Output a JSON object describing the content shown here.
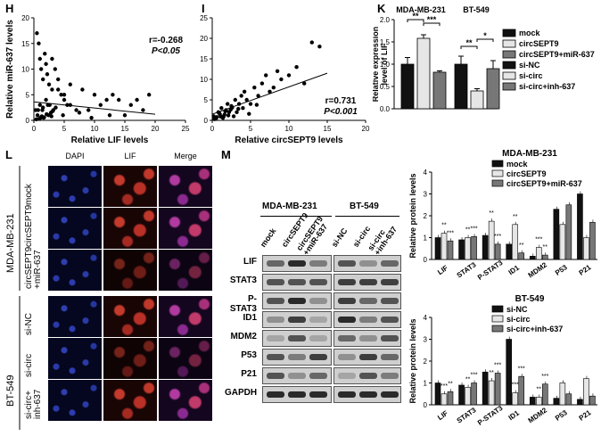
{
  "panels": {
    "H": "H",
    "I": "I",
    "K": "K",
    "L": "L",
    "M": "M"
  },
  "panel_H": {
    "ylabel": "Relative miR-637 levels",
    "xlabel": "Relative LIF levels",
    "r_text": "r=-0.268",
    "p_text": "P<0.05",
    "xticks": [
      "0",
      "5",
      "10",
      "15",
      "20",
      "25"
    ],
    "yticks": [
      "0",
      "5",
      "10",
      "15",
      "20"
    ]
  },
  "panel_I": {
    "ylabel": "Relative LIF levels",
    "xlabel": "Relative circSEPT9 levels",
    "r_text": "r=0.731",
    "p_text": "P<0.001",
    "xticks": [
      "0",
      "5",
      "10",
      "15",
      "20"
    ],
    "yticks": [
      "0",
      "5",
      "10",
      "15",
      "20",
      "25"
    ]
  },
  "panel_K": {
    "ylabel": "Relative expression level of LIF",
    "group1": "MDA-MB-231",
    "group2": "BT-549",
    "yticks": [
      "0.0",
      "0.5",
      "1.0",
      "1.5",
      "2.0"
    ],
    "legend": [
      "mock",
      "circSEPT9",
      "circSEPT9+miR-637",
      "si-NC",
      "si-circ",
      "si-circ+inh-637"
    ],
    "sig": [
      "**",
      "***",
      "**",
      "*"
    ]
  },
  "panel_L": {
    "columns": [
      "DAPI",
      "LIF",
      "Merge"
    ],
    "group1": "MDA-MB-231",
    "group2": "BT-549",
    "rows": [
      "mock",
      "circSEPT9",
      "circSEPT9\n+miR-637",
      "si-NC",
      "si-circ",
      "si-circ+\ninh-637"
    ]
  },
  "panel_M": {
    "group1": "MDA-MB-231",
    "group2": "BT-549",
    "lanes1": [
      "mock",
      "circSEPT9",
      "circSEPT9\n+miR-637"
    ],
    "lanes2": [
      "si-NC",
      "si-circ",
      "si-circ\n+inh-637"
    ],
    "proteins": [
      "LIF",
      "STAT3",
      "P-STAT3",
      "ID1",
      "MDM2",
      "P53",
      "P21",
      "GAPDH"
    ]
  },
  "chart_data": [
    {
      "type": "scatter",
      "title": "",
      "xlabel": "Relative LIF levels",
      "ylabel": "Relative miR-637 levels",
      "xlim": [
        0,
        25
      ],
      "ylim": [
        0,
        20
      ],
      "x": [
        0.5,
        0.8,
        1,
        1.2,
        1.5,
        1.8,
        2,
        2.2,
        2.5,
        3,
        3,
        3.5,
        4,
        4.5,
        5,
        5.5,
        6,
        7,
        8,
        9,
        10,
        11,
        12,
        13,
        14,
        15,
        16,
        17,
        19,
        0.3,
        0.6,
        1,
        1.4,
        2,
        2.6,
        3.2,
        4,
        5,
        6,
        1.6,
        2.4,
        0.9,
        1.3,
        2.8,
        3.6,
        0.4,
        1.1,
        1.7,
        2.1,
        2.9,
        4.8,
        7.5,
        9.5,
        12.5,
        0.7,
        1.5,
        2.3,
        3.1,
        18
      ],
      "y": [
        17,
        15,
        12,
        10,
        8,
        13,
        11,
        9,
        7,
        6,
        12,
        10,
        8,
        5,
        4,
        3,
        7,
        2,
        6,
        2,
        5,
        3,
        4,
        5,
        4,
        1,
        3,
        4,
        5,
        2,
        1,
        3,
        2,
        4,
        3,
        2,
        6,
        5,
        3,
        0.5,
        1,
        0.3,
        0.8,
        1.5,
        2.5,
        0.2,
        0.5,
        0.6,
        1.2,
        0.8,
        1,
        1.5,
        0.5,
        1,
        2,
        2.5,
        3,
        1.8,
        2
      ],
      "fit": [
        [
          0,
          3.6
        ],
        [
          20,
          1.2
        ]
      ],
      "annotations": [
        "r=-0.268",
        "P<0.05"
      ]
    },
    {
      "type": "scatter",
      "title": "",
      "xlabel": "Relative circSEPT9 levels",
      "ylabel": "Relative LIF levels",
      "xlim": [
        0,
        20
      ],
      "ylim": [
        0,
        25
      ],
      "x": [
        0.2,
        0.5,
        0.8,
        1,
        1.2,
        1.5,
        1.8,
        2,
        2.2,
        2.5,
        2.8,
        3,
        3.2,
        3.5,
        3.8,
        4,
        4.2,
        4.5,
        5,
        5.5,
        6,
        6.5,
        7,
        7.5,
        8,
        8.5,
        9,
        10,
        11,
        12,
        13,
        14,
        0.3,
        0.6,
        0.9,
        1.4,
        1.7,
        2.1,
        2.6,
        3.4,
        4.8,
        5.8,
        0.4,
        1.1,
        1.6,
        2.4
      ],
      "y": [
        1,
        0.5,
        2,
        1.5,
        3,
        1,
        2.5,
        4,
        2,
        3.5,
        1,
        5,
        2,
        4,
        6,
        3,
        7,
        5,
        4,
        8,
        6,
        9,
        11,
        7,
        8,
        12,
        10,
        11,
        13,
        9,
        19,
        18,
        0.3,
        0.8,
        1.8,
        0.6,
        2.2,
        1.2,
        3.1,
        2.8,
        1.6,
        3.8,
        0.4,
        0.9,
        1.4,
        2.6
      ],
      "fit": [
        [
          0,
          1.5
        ],
        [
          15,
          11.5
        ]
      ],
      "annotations": [
        "r=0.731",
        "P<0.001"
      ]
    },
    {
      "type": "bar",
      "title": "",
      "ylabel": "Relative expression level of LIF",
      "ylim": [
        0,
        2.0
      ],
      "groups": [
        "MDA-MB-231",
        "BT-549"
      ],
      "series": [
        {
          "name": "mock",
          "values": [
            1.0
          ],
          "err": [
            0.15
          ],
          "color": "#111111",
          "group": 0
        },
        {
          "name": "circSEPT9",
          "values": [
            1.58
          ],
          "err": [
            0.08
          ],
          "color": "#e6e6e6",
          "group": 0
        },
        {
          "name": "circSEPT9+miR-637",
          "values": [
            0.82
          ],
          "err": [
            0.03
          ],
          "color": "#777777",
          "group": 0
        },
        {
          "name": "si-NC",
          "values": [
            1.0
          ],
          "err": [
            0.18
          ],
          "color": "#111111",
          "group": 1
        },
        {
          "name": "si-circ",
          "values": [
            0.4
          ],
          "err": [
            0.05
          ],
          "color": "#e6e6e6",
          "group": 1
        },
        {
          "name": "si-circ+inh-637",
          "values": [
            0.9
          ],
          "err": [
            0.18
          ],
          "color": "#777777",
          "group": 1
        }
      ]
    },
    {
      "type": "bar",
      "title": "MDA-MB-231",
      "ylabel": "Relative protein levels",
      "ylim": [
        0,
        4
      ],
      "yticks": [
        "0",
        "1",
        "2",
        "3",
        "4"
      ],
      "categories": [
        "LIF",
        "STAT3",
        "P-STAT3",
        "ID1",
        "MDM2",
        "P53",
        "P21"
      ],
      "series": [
        {
          "name": "mock",
          "values": [
            1.0,
            0.9,
            1.1,
            0.7,
            0.15,
            2.3,
            3.0
          ],
          "color": "#111111"
        },
        {
          "name": "circSEPT9",
          "values": [
            1.2,
            1.0,
            1.75,
            1.6,
            0.55,
            1.6,
            1.0
          ],
          "color": "#e6e6e6"
        },
        {
          "name": "circSEPT9+miR-637",
          "values": [
            0.85,
            1.05,
            0.7,
            0.3,
            0.2,
            2.5,
            1.7
          ],
          "color": "#777777"
        }
      ],
      "sig": [
        "**",
        "***",
        "**",
        "***",
        "**",
        "***",
        "**",
        "**",
        "***",
        "**"
      ]
    },
    {
      "type": "bar",
      "title": "BT-549",
      "ylabel": "Relative protein levels",
      "ylim": [
        0,
        4
      ],
      "yticks": [
        "0",
        "1",
        "2",
        "3",
        "4"
      ],
      "categories": [
        "LIF",
        "STAT3",
        "P-STAT3",
        "ID1",
        "MDM2",
        "P53",
        "P21"
      ],
      "series": [
        {
          "name": "si-NC",
          "values": [
            1.0,
            0.9,
            1.5,
            3.0,
            0.35,
            0.3,
            0.25
          ],
          "color": "#111111"
        },
        {
          "name": "si-circ",
          "values": [
            0.5,
            0.8,
            1.1,
            0.55,
            0.35,
            1.0,
            1.2
          ],
          "color": "#e6e6e6"
        },
        {
          "name": "si-circ+inh-637",
          "values": [
            0.6,
            1.0,
            1.45,
            1.3,
            0.95,
            0.5,
            0.4
          ],
          "color": "#777777"
        }
      ],
      "sig": [
        "***",
        "**",
        "**",
        "***",
        "**",
        "***",
        "***",
        "***",
        "**",
        "***"
      ]
    }
  ]
}
